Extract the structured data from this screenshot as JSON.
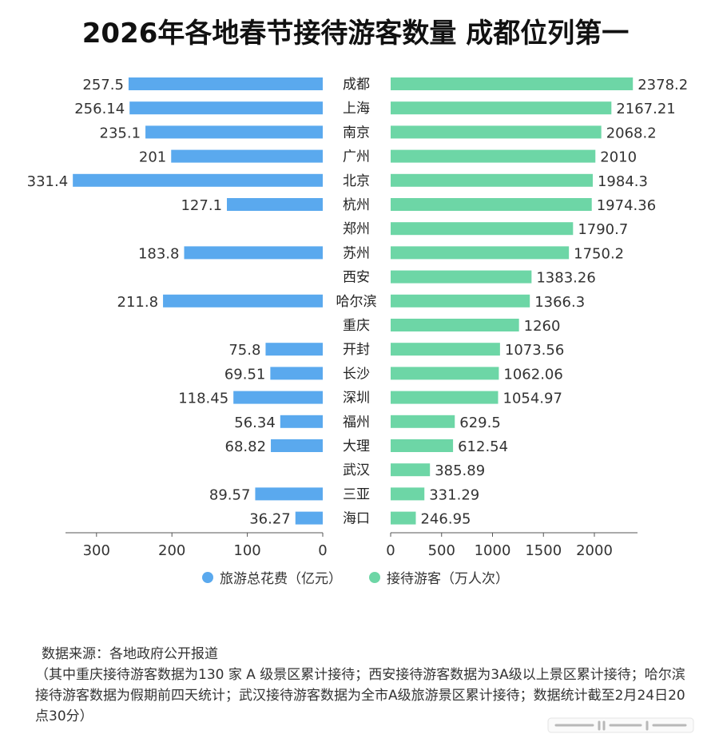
{
  "title": "2026年各地春节接待游客数量 成都位列第一",
  "legend": {
    "left": "旅游总花费（亿元）",
    "right": "接待游客（万人次）"
  },
  "notes": {
    "source": "数据来源：各地政府公开报道",
    "detail": "（其中重庆接待游客数据为130 家 A 级景区累计接待；西安接待游客数据为3A级以上景区累计接待；哈尔滨接待游客数据为假期前四天统计；武汉接待游客数据为全市A级旅游景区累计接待；数据统计截至2月24日20点30分）"
  },
  "colors": {
    "spend": "#5aa9ee",
    "visitors": "#6dd6a6",
    "axis": "#555555"
  },
  "chart_data": {
    "type": "bar",
    "categories": [
      "成都",
      "上海",
      "南京",
      "广州",
      "北京",
      "杭州",
      "郑州",
      "苏州",
      "西安",
      "哈尔滨",
      "重庆",
      "开封",
      "长沙",
      "深圳",
      "福州",
      "大理",
      "武汉",
      "三亚",
      "海口"
    ],
    "series": [
      {
        "name": "旅游总花费（亿元）",
        "values": [
          257.5,
          256.14,
          235.1,
          201,
          331.4,
          127.1,
          null,
          183.8,
          null,
          211.8,
          null,
          75.8,
          69.51,
          118.45,
          56.34,
          68.82,
          null,
          89.57,
          36.27
        ],
        "labels": [
          "257.5",
          "256.14",
          "235.1",
          "201",
          "331.4",
          "127.1",
          "",
          "183.8",
          "",
          "211.8",
          "",
          "75.8",
          "69.51",
          "118.45",
          "56.34",
          "68.82",
          "",
          "89.57",
          "36.27"
        ],
        "xlim": [
          0,
          340
        ],
        "ticks": [
          "300",
          "200",
          "100",
          "0"
        ],
        "tick_values": [
          300,
          200,
          100,
          0
        ]
      },
      {
        "name": "接待游客（万人次）",
        "values": [
          2378.2,
          2167.21,
          2068.2,
          2010,
          1984.3,
          1974.36,
          1790.7,
          1750.2,
          1383.26,
          1366.3,
          1260,
          1073.56,
          1062.06,
          1054.97,
          629.5,
          612.54,
          385.89,
          331.29,
          246.95
        ],
        "labels": [
          "2378.2",
          "2167.21",
          "2068.2",
          "2010",
          "1984.3",
          "1974.36",
          "1790.7",
          "1750.2",
          "1383.26",
          "1366.3",
          "1260",
          "1073.56",
          "1062.06",
          "1054.97",
          "629.5",
          "612.54",
          "385.89",
          "331.29",
          "246.95"
        ],
        "xlim": [
          0,
          2430
        ],
        "ticks": [
          "0",
          "500",
          "1000",
          "1500",
          "2000"
        ],
        "tick_values": [
          0,
          500,
          1000,
          1500,
          2000
        ]
      }
    ]
  }
}
